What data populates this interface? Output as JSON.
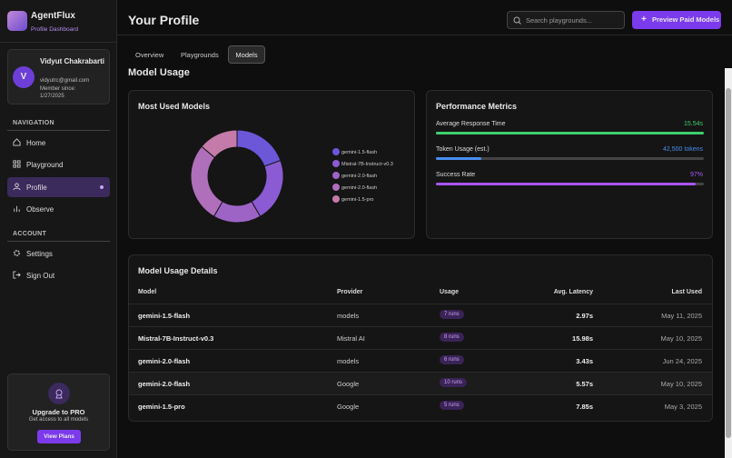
{
  "sidebar": {
    "brand": "AgentFlux",
    "subtitle": "Profile Dashboard",
    "user": {
      "initial": "V",
      "name": "Vidyut Chakrabarti",
      "email": "vidyutrc@gmail.com",
      "member_since": "Member since: 1/27/2025"
    },
    "nav_heading": "NAVIGATION",
    "nav": [
      "Home",
      "Playground",
      "Profile",
      "Observe"
    ],
    "account_heading": "ACCOUNT",
    "account": [
      "Settings",
      "Sign Out"
    ],
    "upgrade": {
      "title": "Upgrade to PRO",
      "text": "Get access to all models",
      "button": "View Plans"
    }
  },
  "header": {
    "title": "Your Profile",
    "search_placeholder": "Search playgrounds...",
    "button": "Preview Paid Models"
  },
  "tabs": [
    "Overview",
    "Playgrounds",
    "Models"
  ],
  "section_title": "Model Usage",
  "chart_data": {
    "type": "pie",
    "title": "Most Used Models",
    "categories": [
      "gemini-1.5-flash",
      "Mistral-7B-Instruct-v0.3",
      "gemini-2.0-flash",
      "gemini-2.0-flash",
      "gemini-1.5-pro"
    ],
    "values": [
      7,
      8,
      6,
      10,
      5
    ],
    "colors": [
      "#6b57d8",
      "#8a5bd2",
      "#9d64c6",
      "#b06fbb",
      "#c47ba9"
    ]
  },
  "metrics": {
    "title": "Performance Metrics",
    "items": [
      {
        "label": "Average Response Time",
        "value": "15.54s",
        "percent": 100,
        "color": "#3ecf6e"
      },
      {
        "label": "Token Usage (est.)",
        "value": "42,500 tokens",
        "percent": 17,
        "color": "#4a8ef0"
      },
      {
        "label": "Success Rate",
        "value": "97%",
        "percent": 97,
        "color": "#a855f7"
      }
    ]
  },
  "table": {
    "title": "Model Usage Details",
    "columns": [
      "Model",
      "Provider",
      "Usage",
      "Avg. Latency",
      "Last Used"
    ],
    "rows": [
      [
        "gemini-1.5-flash",
        "models",
        "7 runs",
        "2.97s",
        "May 11, 2025"
      ],
      [
        "Mistral-7B-Instruct-v0.3",
        "Mistral AI",
        "8 runs",
        "15.98s",
        "May 10, 2025"
      ],
      [
        "gemini-2.0-flash",
        "models",
        "6 runs",
        "3.43s",
        "Jun 24, 2025"
      ],
      [
        "gemini-2.0-flash",
        "Google",
        "10 runs",
        "5.57s",
        "May 10, 2025"
      ],
      [
        "gemini-1.5-pro",
        "Google",
        "5 runs",
        "7.85s",
        "May 3, 2025"
      ]
    ]
  }
}
